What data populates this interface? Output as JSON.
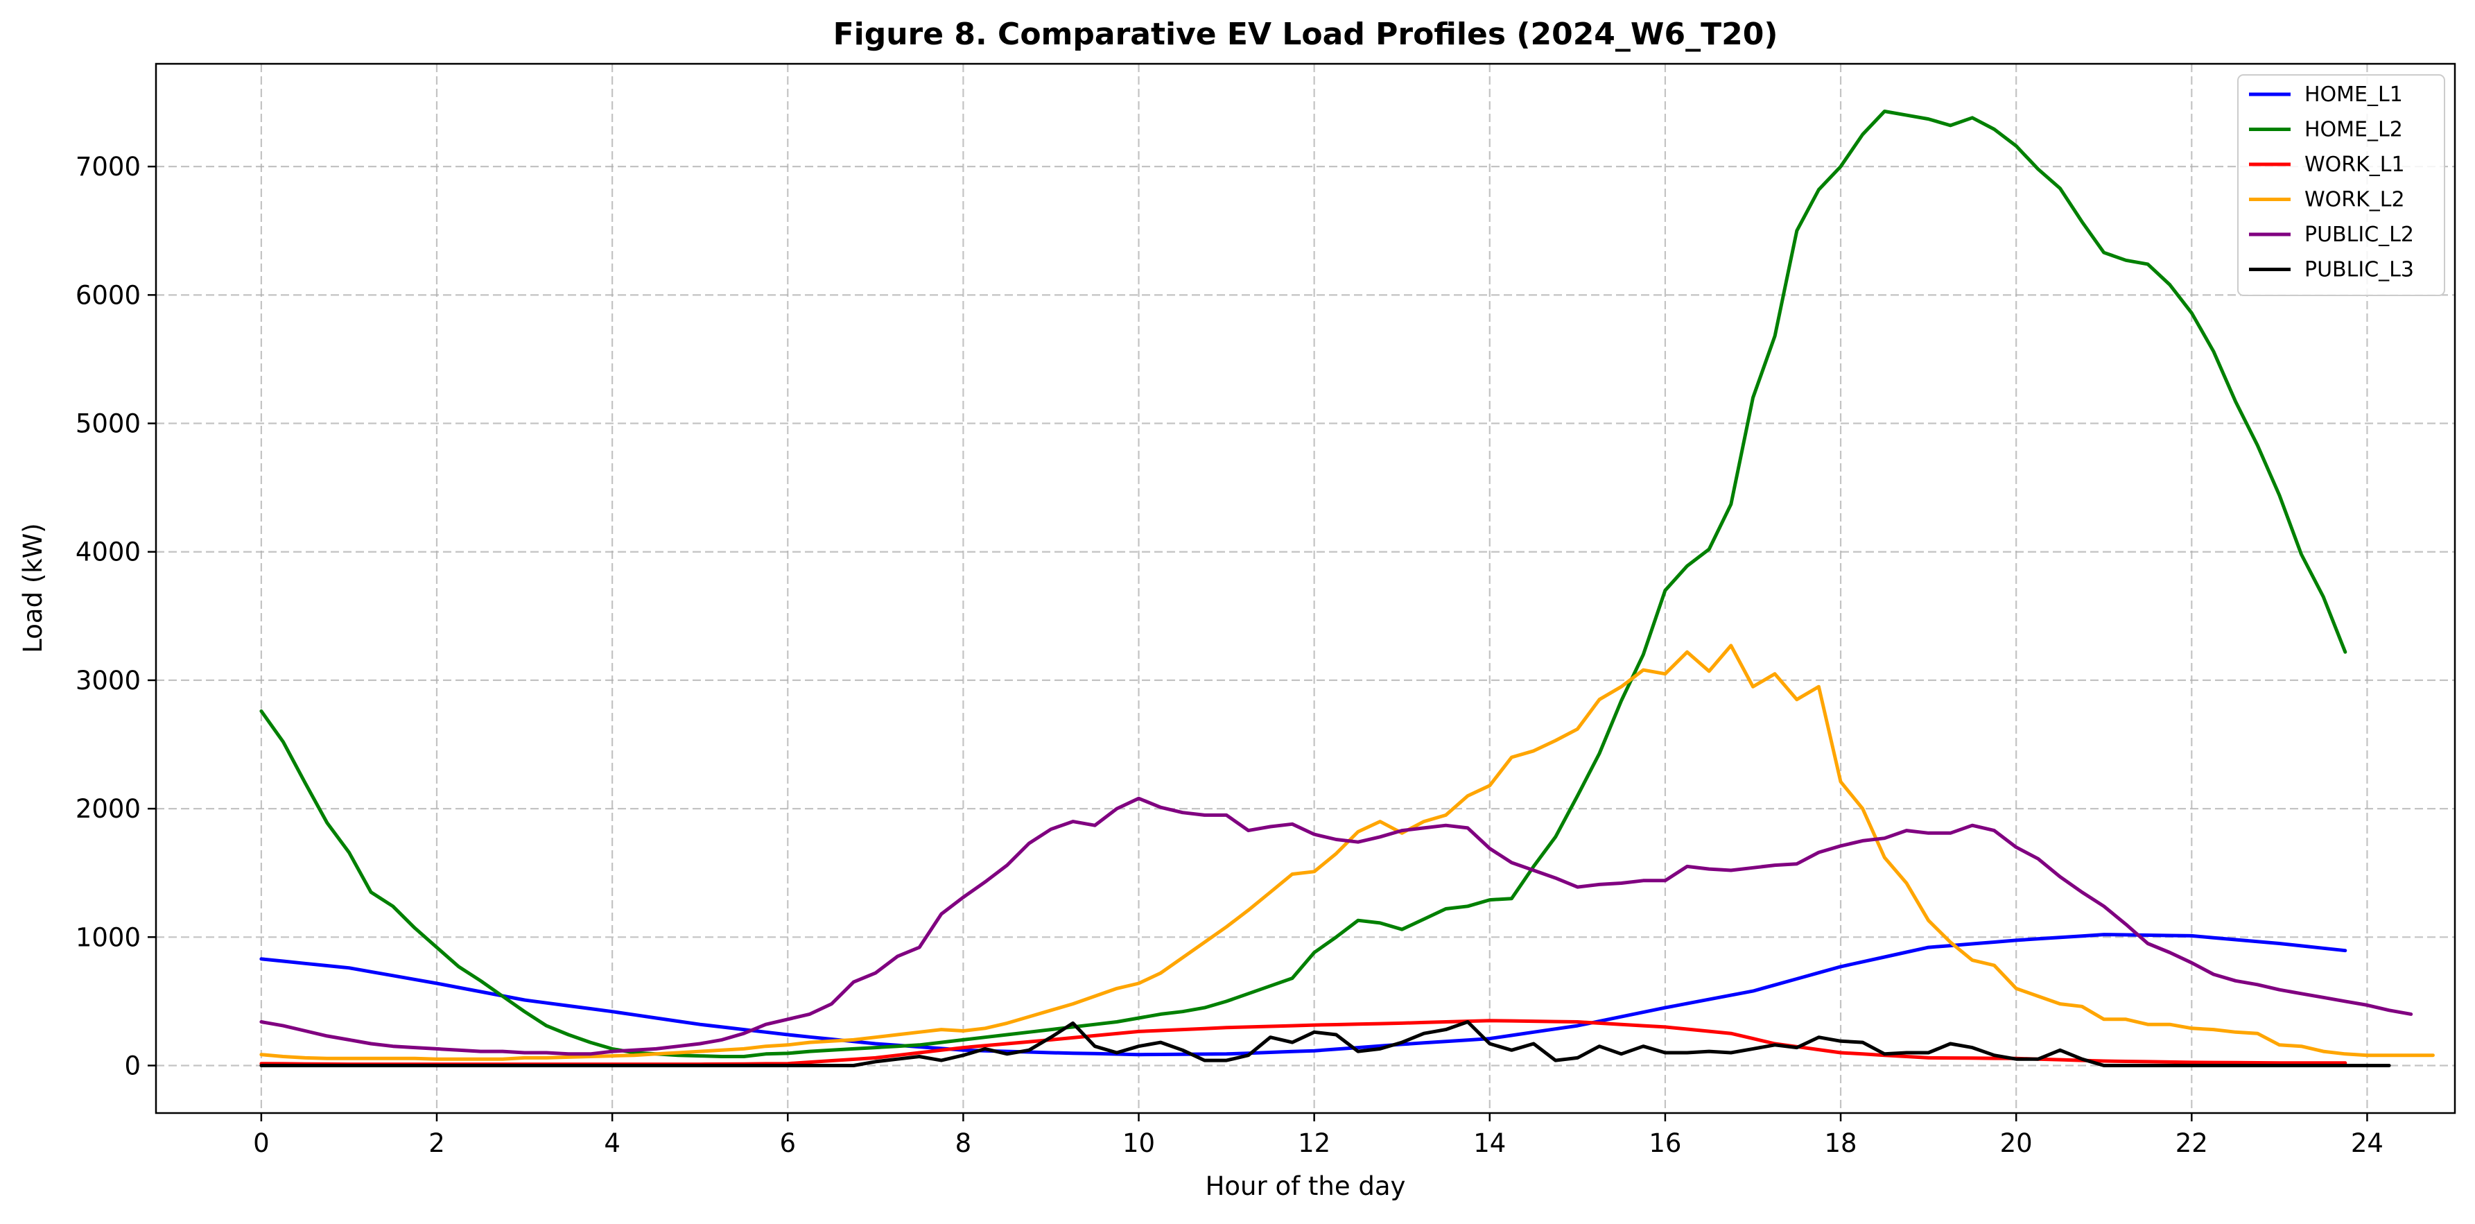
{
  "chart_data": {
    "type": "line",
    "title": "Figure 8. Comparative EV Load Profiles (2024_W6_T20)",
    "xlabel": "Hour of the day",
    "ylabel": "Load (kW)",
    "xlim": [
      -1.2,
      25
    ],
    "ylim": [
      -370,
      7800
    ],
    "xticks": [
      0,
      2,
      4,
      6,
      8,
      10,
      12,
      14,
      16,
      18,
      20,
      22,
      24
    ],
    "yticks": [
      0,
      1000,
      2000,
      3000,
      4000,
      5000,
      6000,
      7000
    ],
    "grid": true,
    "legend_position": "top-right",
    "x_step": 0.25,
    "series": [
      {
        "name": "HOME_L1",
        "color": "#0000ff",
        "anchors": [
          [
            0,
            830
          ],
          [
            1,
            760
          ],
          [
            2,
            640
          ],
          [
            3,
            510
          ],
          [
            4,
            420
          ],
          [
            5,
            320
          ],
          [
            6,
            240
          ],
          [
            7,
            170
          ],
          [
            8,
            120
          ],
          [
            9,
            100
          ],
          [
            10,
            85
          ],
          [
            11,
            90
          ],
          [
            12,
            115
          ],
          [
            13,
            165
          ],
          [
            14,
            210
          ],
          [
            15,
            310
          ],
          [
            16,
            450
          ],
          [
            17,
            580
          ],
          [
            18,
            770
          ],
          [
            19,
            920
          ],
          [
            20,
            975
          ],
          [
            21,
            1020
          ],
          [
            22,
            1010
          ],
          [
            23,
            950
          ],
          [
            23.75,
            895
          ]
        ]
      },
      {
        "name": "HOME_L2",
        "color": "#008000",
        "values": [
          2760,
          2520,
          2200,
          1890,
          1660,
          1350,
          1240,
          1070,
          920,
          770,
          660,
          540,
          420,
          310,
          240,
          180,
          130,
          100,
          90,
          80,
          75,
          70,
          70,
          90,
          95,
          110,
          120,
          130,
          140,
          150,
          160,
          180,
          200,
          220,
          240,
          260,
          280,
          300,
          320,
          340,
          370,
          400,
          420,
          450,
          500,
          560,
          620,
          680,
          880,
          1000,
          1130,
          1110,
          1060,
          1140,
          1220,
          1240,
          1290,
          1300,
          1550,
          1780,
          2100,
          2430,
          2840,
          3200,
          3700,
          3890,
          4020,
          4370,
          5200,
          5680,
          6500,
          6820,
          7000,
          7250,
          7430,
          7400,
          7370,
          7320,
          7380,
          7290,
          7160,
          6980,
          6830,
          6570,
          6330,
          6270,
          6240,
          6080,
          5860,
          5560,
          5170,
          4830,
          4440,
          3980,
          3650,
          3220
        ]
      },
      {
        "name": "WORK_L1",
        "color": "#ff0000",
        "anchors": [
          [
            0,
            15
          ],
          [
            1,
            10
          ],
          [
            2,
            10
          ],
          [
            3,
            10
          ],
          [
            4,
            10
          ],
          [
            5,
            10
          ],
          [
            6,
            15
          ],
          [
            7,
            60
          ],
          [
            8,
            140
          ],
          [
            9,
            200
          ],
          [
            10,
            265
          ],
          [
            11,
            295
          ],
          [
            12,
            315
          ],
          [
            13,
            330
          ],
          [
            14,
            350
          ],
          [
            15,
            340
          ],
          [
            16,
            300
          ],
          [
            16.75,
            250
          ],
          [
            17.25,
            170
          ],
          [
            18,
            100
          ],
          [
            19,
            60
          ],
          [
            20,
            55
          ],
          [
            21,
            35
          ],
          [
            22,
            25
          ],
          [
            23,
            20
          ],
          [
            23.75,
            20
          ]
        ]
      },
      {
        "name": "WORK_L2",
        "color": "#ffa500",
        "values": [
          85,
          70,
          60,
          55,
          55,
          55,
          55,
          55,
          50,
          50,
          50,
          50,
          60,
          60,
          65,
          70,
          75,
          80,
          90,
          100,
          110,
          120,
          130,
          150,
          160,
          180,
          190,
          200,
          220,
          240,
          260,
          280,
          270,
          290,
          330,
          380,
          430,
          480,
          540,
          600,
          640,
          720,
          840,
          960,
          1080,
          1210,
          1350,
          1490,
          1510,
          1650,
          1820,
          1900,
          1810,
          1900,
          1950,
          2100,
          2180,
          2400,
          2450,
          2530,
          2620,
          2850,
          2950,
          3080,
          3050,
          3220,
          3070,
          3270,
          2950,
          3050,
          2850,
          2950,
          2210,
          2000,
          1620,
          1420,
          1130,
          960,
          820,
          780,
          600,
          540,
          480,
          460,
          360,
          360,
          320,
          320,
          290,
          280,
          260,
          250,
          160,
          150,
          110,
          90,
          80,
          80,
          80,
          80
        ]
      },
      {
        "name": "PUBLIC_L2",
        "color": "#800080",
        "values": [
          340,
          310,
          270,
          230,
          200,
          170,
          150,
          140,
          130,
          120,
          110,
          110,
          100,
          100,
          90,
          90,
          110,
          120,
          130,
          150,
          170,
          200,
          250,
          320,
          360,
          400,
          480,
          650,
          720,
          850,
          920,
          1180,
          1310,
          1430,
          1560,
          1730,
          1840,
          1900,
          1870,
          2000,
          2080,
          2010,
          1970,
          1950,
          1950,
          1830,
          1860,
          1880,
          1800,
          1760,
          1740,
          1780,
          1830,
          1850,
          1870,
          1850,
          1690,
          1580,
          1520,
          1460,
          1390,
          1410,
          1420,
          1440,
          1440,
          1550,
          1530,
          1520,
          1540,
          1560,
          1570,
          1660,
          1710,
          1750,
          1770,
          1830,
          1810,
          1810,
          1870,
          1830,
          1700,
          1610,
          1470,
          1350,
          1240,
          1100,
          950,
          880,
          800,
          710,
          660,
          630,
          590,
          560,
          530,
          500,
          470,
          430,
          400
        ]
      },
      {
        "name": "PUBLIC_L3",
        "color": "#000000",
        "values": [
          0,
          0,
          0,
          0,
          0,
          0,
          0,
          0,
          0,
          0,
          0,
          0,
          0,
          0,
          0,
          0,
          0,
          0,
          0,
          0,
          0,
          0,
          0,
          0,
          0,
          0,
          0,
          0,
          30,
          50,
          70,
          40,
          80,
          130,
          90,
          120,
          220,
          330,
          150,
          100,
          150,
          180,
          120,
          40,
          40,
          80,
          220,
          180,
          260,
          240,
          110,
          130,
          180,
          250,
          280,
          340,
          170,
          120,
          170,
          40,
          60,
          150,
          90,
          150,
          100,
          100,
          110,
          100,
          130,
          160,
          140,
          220,
          190,
          180,
          90,
          100,
          100,
          170,
          140,
          80,
          50,
          50,
          120,
          50,
          0,
          0,
          0,
          0,
          0,
          0,
          0,
          0,
          0,
          0,
          0,
          0,
          0,
          0
        ]
      }
    ]
  }
}
